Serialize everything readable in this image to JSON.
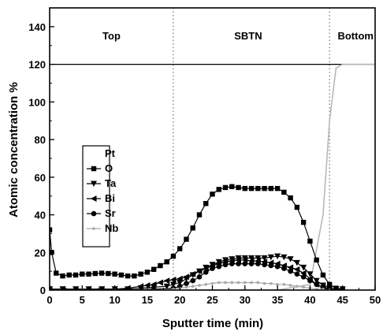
{
  "chart_data": {
    "type": "line",
    "xlabel": "Sputter time (min)",
    "ylabel": "Atomic concentration %",
    "xlim": [
      0,
      50
    ],
    "ylim": [
      0,
      150
    ],
    "xticks": [
      0,
      5,
      10,
      15,
      20,
      25,
      30,
      35,
      40,
      45,
      50
    ],
    "yticks": [
      0,
      20,
      40,
      60,
      80,
      100,
      120,
      140
    ],
    "grid": false,
    "legend_position": "lower-left",
    "regions": [
      {
        "label": "Top",
        "x_center": 9.5
      },
      {
        "label": "SBTN",
        "x_center": 30.5
      },
      {
        "label": "Bottom",
        "x_center": 47
      }
    ],
    "dividers_x": [
      19,
      43
    ],
    "reference_line": {
      "y": 120
    },
    "series": [
      {
        "name": "Pt",
        "marker": "none",
        "color": "#b8b8b8",
        "x": [
          0,
          5,
          10,
          15,
          19,
          22,
          25,
          30,
          35,
          40,
          42,
          43,
          44,
          45,
          46,
          48,
          50
        ],
        "y": [
          0,
          0,
          0,
          0,
          0,
          0,
          0,
          0,
          0,
          3,
          40,
          90,
          118,
          120,
          120,
          120,
          120
        ]
      },
      {
        "name": "O",
        "marker": "square",
        "color": "#000000",
        "x": [
          0,
          0.3,
          1,
          2,
          3,
          4,
          5,
          6,
          7,
          8,
          9,
          10,
          11,
          12,
          13,
          14,
          15,
          16,
          17,
          18,
          19,
          20,
          21,
          22,
          23,
          24,
          25,
          26,
          27,
          28,
          29,
          30,
          31,
          32,
          33,
          34,
          35,
          36,
          37,
          38,
          39,
          40,
          41,
          42,
          43,
          44,
          45
        ],
        "y": [
          32,
          20,
          9,
          7.5,
          8,
          8,
          8.5,
          8.5,
          8.8,
          9,
          8.8,
          8.5,
          8,
          7.5,
          7.5,
          8.5,
          9.5,
          11,
          13,
          15,
          18,
          22,
          27,
          33,
          40,
          46,
          51,
          53.5,
          54.5,
          55,
          54.5,
          54,
          54,
          54,
          54,
          54,
          54,
          52,
          49,
          44,
          36,
          26,
          16,
          8,
          3,
          1,
          0.5
        ]
      },
      {
        "name": "Ta",
        "marker": "triangle-down",
        "color": "#000000",
        "x": [
          0,
          2,
          4,
          6,
          8,
          10,
          12,
          14,
          16,
          18,
          19,
          20,
          21,
          22,
          23,
          24,
          25,
          26,
          27,
          28,
          29,
          30,
          31,
          32,
          33,
          34,
          35,
          36,
          37,
          38,
          39,
          40,
          41,
          42,
          43,
          44,
          45
        ],
        "y": [
          0.5,
          0.5,
          0.5,
          0.5,
          0.5,
          0.5,
          0.5,
          1,
          1.5,
          2,
          3,
          4,
          6,
          8,
          10,
          12,
          13.5,
          15,
          16,
          16.5,
          17,
          17,
          17,
          17,
          17,
          17.5,
          18,
          17.5,
          16.5,
          14.5,
          12,
          8.5,
          5,
          2.5,
          1,
          0.5,
          0.5
        ]
      },
      {
        "name": "Bi",
        "marker": "triangle-left",
        "color": "#000000",
        "x": [
          0,
          2,
          4,
          6,
          8,
          10,
          12,
          14,
          15,
          16,
          17,
          18,
          19,
          20,
          21,
          22,
          23,
          24,
          25,
          26,
          27,
          28,
          29,
          30,
          31,
          32,
          33,
          34,
          35,
          36,
          37,
          38,
          39,
          40,
          41,
          42,
          43
        ],
        "y": [
          0.5,
          0.5,
          0.5,
          0.5,
          0.5,
          0.5,
          1,
          2,
          2.5,
          3,
          4,
          5,
          5.5,
          6,
          7,
          8.5,
          10,
          11.5,
          13,
          14,
          15,
          15.5,
          16,
          16,
          15.5,
          15.5,
          15,
          14.5,
          14,
          13,
          12,
          11,
          9,
          6,
          3,
          1.5,
          0.5
        ]
      },
      {
        "name": "Sr",
        "marker": "circle",
        "color": "#000000",
        "x": [
          0,
          4,
          8,
          12,
          16,
          19,
          20,
          21,
          22,
          23,
          24,
          25,
          26,
          27,
          28,
          29,
          30,
          31,
          32,
          33,
          34,
          35,
          36,
          37,
          38,
          39,
          40,
          41,
          42,
          43,
          44
        ],
        "y": [
          0,
          0,
          0,
          0,
          0.5,
          1,
          2,
          3.5,
          5,
          7,
          9.5,
          11.5,
          12.5,
          13.5,
          14,
          14,
          14,
          14,
          14,
          13.5,
          13,
          12.5,
          11.5,
          10,
          8.5,
          7,
          5,
          3,
          1.5,
          0.5,
          0
        ]
      },
      {
        "name": "Nb",
        "marker": "small-dot",
        "color": "#a8a8a8",
        "x": [
          0,
          5,
          10,
          15,
          19,
          20,
          21,
          22,
          23,
          24,
          25,
          26,
          27,
          28,
          29,
          30,
          31,
          32,
          33,
          34,
          35,
          36,
          37,
          38,
          39,
          40,
          41,
          42,
          43
        ],
        "y": [
          0,
          0,
          0,
          0,
          0.5,
          1,
          1.5,
          2,
          2.5,
          3,
          3.5,
          4,
          4,
          4,
          4,
          4,
          4,
          4,
          3.5,
          3.5,
          3,
          3,
          2.5,
          2,
          1.5,
          1,
          0.5,
          0.5,
          0
        ]
      }
    ]
  }
}
